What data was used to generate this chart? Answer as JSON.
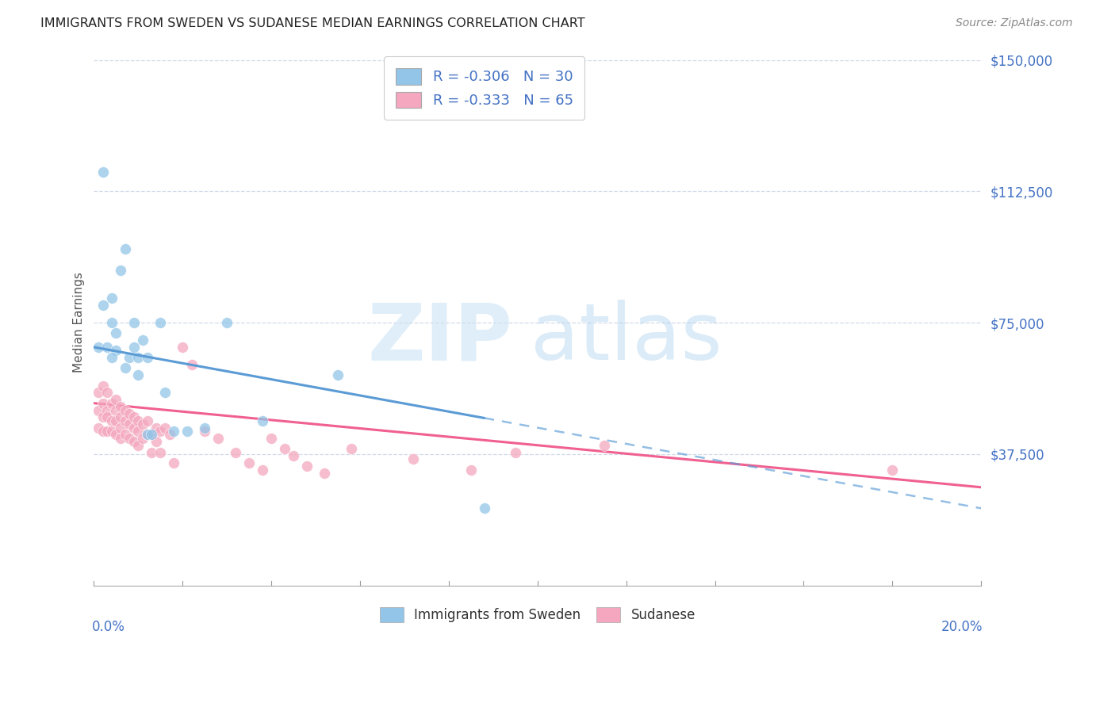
{
  "title": "IMMIGRANTS FROM SWEDEN VS SUDANESE MEDIAN EARNINGS CORRELATION CHART",
  "source": "Source: ZipAtlas.com",
  "ylabel": "Median Earnings",
  "ytick_labels": [
    "$37,500",
    "$75,000",
    "$112,500",
    "$150,000"
  ],
  "ytick_values": [
    37500,
    75000,
    112500,
    150000
  ],
  "xlim": [
    0,
    0.2
  ],
  "ylim": [
    0,
    150000
  ],
  "legend_label1": "Immigrants from Sweden",
  "legend_label2": "Sudanese",
  "R1": "-0.306",
  "N1": "30",
  "R2": "-0.333",
  "N2": "65",
  "color_sweden": "#92c5e8",
  "color_sudanese": "#f4a7be",
  "color_trend_sweden": "#5b9bd5",
  "color_trend_sudanese": "#f06090",
  "watermark_zip_color": "#cce4f5",
  "watermark_atlas_color": "#b8d8f0",
  "trend_sweden_x0": 0.0,
  "trend_sweden_y0": 68000,
  "trend_sweden_x1": 0.2,
  "trend_sweden_y1": 22000,
  "trend_sweden_solid_end": 0.088,
  "trend_sudanese_x0": 0.0,
  "trend_sudanese_y0": 52000,
  "trend_sudanese_x1": 0.2,
  "trend_sudanese_y1": 28000,
  "sweden_x": [
    0.001,
    0.002,
    0.003,
    0.004,
    0.004,
    0.005,
    0.005,
    0.006,
    0.007,
    0.008,
    0.009,
    0.009,
    0.01,
    0.01,
    0.011,
    0.012,
    0.012,
    0.013,
    0.015,
    0.016,
    0.018,
    0.021,
    0.025,
    0.03,
    0.038,
    0.055,
    0.088,
    0.002,
    0.004,
    0.007
  ],
  "sweden_y": [
    68000,
    80000,
    68000,
    82000,
    75000,
    67000,
    72000,
    90000,
    96000,
    65000,
    68000,
    75000,
    60000,
    65000,
    70000,
    43000,
    65000,
    43000,
    75000,
    55000,
    44000,
    44000,
    45000,
    75000,
    47000,
    60000,
    22000,
    118000,
    65000,
    62000
  ],
  "sudanese_x": [
    0.001,
    0.001,
    0.001,
    0.002,
    0.002,
    0.002,
    0.002,
    0.003,
    0.003,
    0.003,
    0.003,
    0.004,
    0.004,
    0.004,
    0.005,
    0.005,
    0.005,
    0.005,
    0.006,
    0.006,
    0.006,
    0.006,
    0.007,
    0.007,
    0.007,
    0.008,
    0.008,
    0.008,
    0.009,
    0.009,
    0.009,
    0.01,
    0.01,
    0.01,
    0.011,
    0.011,
    0.012,
    0.012,
    0.013,
    0.013,
    0.014,
    0.014,
    0.015,
    0.015,
    0.016,
    0.017,
    0.018,
    0.02,
    0.022,
    0.025,
    0.028,
    0.032,
    0.035,
    0.038,
    0.04,
    0.043,
    0.045,
    0.048,
    0.052,
    0.058,
    0.072,
    0.085,
    0.095,
    0.115,
    0.18
  ],
  "sudanese_y": [
    55000,
    50000,
    45000,
    52000,
    48000,
    44000,
    57000,
    55000,
    50000,
    48000,
    44000,
    52000,
    47000,
    44000,
    53000,
    50000,
    47000,
    43000,
    51000,
    48000,
    45000,
    42000,
    50000,
    47000,
    43000,
    49000,
    46000,
    42000,
    48000,
    45000,
    41000,
    47000,
    44000,
    40000,
    46000,
    42000,
    47000,
    43000,
    43000,
    38000,
    45000,
    41000,
    44000,
    38000,
    45000,
    43000,
    35000,
    68000,
    63000,
    44000,
    42000,
    38000,
    35000,
    33000,
    42000,
    39000,
    37000,
    34000,
    32000,
    39000,
    36000,
    33000,
    38000,
    40000,
    33000
  ]
}
